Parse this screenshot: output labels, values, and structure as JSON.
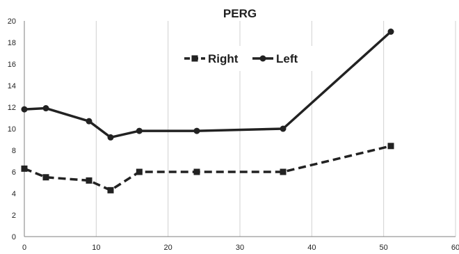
{
  "chart_data": {
    "type": "line",
    "title": "PERG",
    "xlabel": "",
    "ylabel": "",
    "xlim": [
      0,
      60
    ],
    "ylim": [
      0,
      20
    ],
    "x_ticks": [
      0,
      10,
      20,
      30,
      40,
      50,
      60
    ],
    "y_ticks": [
      0,
      2,
      4,
      6,
      8,
      10,
      12,
      14,
      16,
      18,
      20
    ],
    "grid": "vertical",
    "legend_position": "top-center",
    "series": [
      {
        "name": "Right",
        "marker": "square",
        "line_style": "dashed",
        "color": "#222222",
        "points": [
          {
            "x": 0,
            "y": 6.3
          },
          {
            "x": 3,
            "y": 5.5
          },
          {
            "x": 9,
            "y": 5.2
          },
          {
            "x": 12,
            "y": 4.3
          },
          {
            "x": 16,
            "y": 6.0
          },
          {
            "x": 24,
            "y": 6.0
          },
          {
            "x": 36,
            "y": 6.0
          },
          {
            "x": 51,
            "y": 8.4
          }
        ]
      },
      {
        "name": "Left",
        "marker": "circle",
        "line_style": "solid",
        "color": "#222222",
        "points": [
          {
            "x": 0,
            "y": 11.8
          },
          {
            "x": 3,
            "y": 11.9
          },
          {
            "x": 9,
            "y": 10.7
          },
          {
            "x": 12,
            "y": 9.2
          },
          {
            "x": 16,
            "y": 9.8
          },
          {
            "x": 24,
            "y": 9.8
          },
          {
            "x": 36,
            "y": 10.0
          },
          {
            "x": 51,
            "y": 19.0
          }
        ]
      }
    ]
  }
}
